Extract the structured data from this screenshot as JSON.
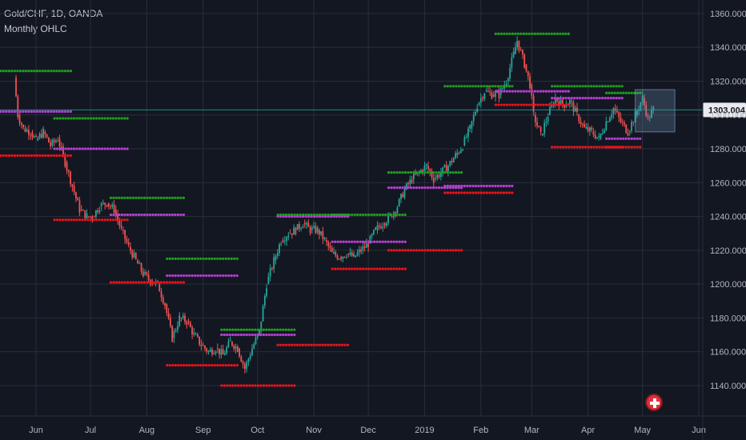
{
  "legend": {
    "title": "Gold/CHF, 1D, OANDA",
    "indicator": "Monthly OHLC"
  },
  "last_price": "1303.004",
  "colors": {
    "background": "#131722",
    "grid": "#2a2e39",
    "up": "#26a69a",
    "down": "#ef5350",
    "monthly_high": "#1e9e1e",
    "monthly_low": "#e8131b",
    "monthly_open": "#b43fd0",
    "price_line": "#26a69a"
  },
  "chart_data": {
    "type": "line",
    "title": "Gold/CHF, 1D, OANDA",
    "x_axis": {
      "tick_labels": [
        "Jun",
        "Jul",
        "Aug",
        "Sep",
        "Oct",
        "Nov",
        "Dec",
        "2019",
        "Feb",
        "Mar",
        "Apr",
        "May",
        "Jun"
      ]
    },
    "y_axis": {
      "range": [
        1122,
        1368
      ],
      "ticks": [
        1140,
        1160,
        1180,
        1200,
        1220,
        1240,
        1260,
        1280,
        1300,
        1320,
        1340,
        1360
      ],
      "decimals": 3
    },
    "grid": true,
    "price_path": [
      [
        "May 20",
        1322
      ],
      [
        "May 22",
        1300
      ],
      [
        "May 25",
        1292
      ],
      [
        "May 29",
        1290
      ],
      [
        "Jun 1",
        1285
      ],
      [
        "Jun 5",
        1290
      ],
      [
        "Jun 9",
        1282
      ],
      [
        "Jun 13",
        1286
      ],
      [
        "Jun 17",
        1272
      ],
      [
        "Jun 21",
        1258
      ],
      [
        "Jun 25",
        1244
      ],
      [
        "Jun 29",
        1240
      ],
      [
        "Jul 2",
        1240
      ],
      [
        "Jul 6",
        1246
      ],
      [
        "Jul 10",
        1248
      ],
      [
        "Jul 14",
        1244
      ],
      [
        "Jul 18",
        1232
      ],
      [
        "Jul 22",
        1222
      ],
      [
        "Jul 26",
        1214
      ],
      [
        "Jul 30",
        1206
      ],
      [
        "Aug 3",
        1202
      ],
      [
        "Aug 7",
        1200
      ],
      [
        "Aug 11",
        1188
      ],
      [
        "Aug 15",
        1168
      ],
      [
        "Aug 19",
        1180
      ],
      [
        "Aug 23",
        1178
      ],
      [
        "Aug 27",
        1170
      ],
      [
        "Aug 31",
        1164
      ],
      [
        "Sep 4",
        1160
      ],
      [
        "Sep 8",
        1162
      ],
      [
        "Sep 12",
        1158
      ],
      [
        "Sep 16",
        1166
      ],
      [
        "Sep 20",
        1162
      ],
      [
        "Sep 24",
        1150
      ],
      [
        "Sep 28",
        1162
      ],
      [
        "Oct 2",
        1172
      ],
      [
        "Oct 6",
        1200
      ],
      [
        "Oct 10",
        1214
      ],
      [
        "Oct 14",
        1226
      ],
      [
        "Oct 18",
        1230
      ],
      [
        "Oct 22",
        1232
      ],
      [
        "Oct 26",
        1236
      ],
      [
        "Oct 30",
        1232
      ],
      [
        "Nov 3",
        1232
      ],
      [
        "Nov 7",
        1226
      ],
      [
        "Nov 11",
        1218
      ],
      [
        "Nov 15",
        1216
      ],
      [
        "Nov 19",
        1218
      ],
      [
        "Nov 23",
        1216
      ],
      [
        "Nov 27",
        1220
      ],
      [
        "Dec 1",
        1224
      ],
      [
        "Dec 5",
        1232
      ],
      [
        "Dec 9",
        1236
      ],
      [
        "Dec 13",
        1240
      ],
      [
        "Dec 17",
        1246
      ],
      [
        "Dec 21",
        1256
      ],
      [
        "Dec 25",
        1262
      ],
      [
        "Dec 29",
        1266
      ],
      [
        "Jan 2",
        1270
      ],
      [
        "Jan 6",
        1262
      ],
      [
        "Jan 10",
        1266
      ],
      [
        "Jan 14",
        1270
      ],
      [
        "Jan 18",
        1276
      ],
      [
        "Jan 22",
        1282
      ],
      [
        "Jan 26",
        1292
      ],
      [
        "Jan 30",
        1306
      ],
      [
        "Feb 3",
        1314
      ],
      [
        "Feb 7",
        1312
      ],
      [
        "Feb 11",
        1312
      ],
      [
        "Feb 15",
        1320
      ],
      [
        "Feb 19",
        1336
      ],
      [
        "Feb 21",
        1344
      ],
      [
        "Feb 25",
        1330
      ],
      [
        "Feb 28",
        1318
      ],
      [
        "Mar 2",
        1300
      ],
      [
        "Mar 6",
        1288
      ],
      [
        "Mar 10",
        1300
      ],
      [
        "Mar 14",
        1310
      ],
      [
        "Mar 18",
        1306
      ],
      [
        "Mar 22",
        1308
      ],
      [
        "Mar 26",
        1300
      ],
      [
        "Mar 30",
        1292
      ],
      [
        "Apr 3",
        1290
      ],
      [
        "Apr 7",
        1286
      ],
      [
        "Apr 11",
        1296
      ],
      [
        "Apr 15",
        1304
      ],
      [
        "Apr 19",
        1296
      ],
      [
        "Apr 23",
        1290
      ],
      [
        "Apr 27",
        1300
      ],
      [
        "May 1",
        1310
      ],
      [
        "May 4",
        1298
      ],
      [
        "May 7",
        1303
      ]
    ],
    "monthly_levels": [
      {
        "month": "Jun",
        "start": "May 20",
        "end": "Jun 30",
        "high": 1326,
        "open": 1302,
        "low": 1276
      },
      {
        "month": "Jul",
        "start": "Jul 1",
        "end": "Jul 31",
        "high": 1298,
        "open": 1280,
        "low": 1238
      },
      {
        "month": "Aug",
        "start": "Aug 1",
        "end": "Aug 31",
        "high": 1251,
        "open": 1241,
        "low": 1201
      },
      {
        "month": "Sep",
        "start": "Sep 1",
        "end": "Sep 30",
        "high": 1215,
        "open": 1205,
        "low": 1152
      },
      {
        "month": "Oct",
        "start": "Oct 1",
        "end": "Oct 31",
        "high": 1173,
        "open": 1170,
        "low": 1140
      },
      {
        "month": "Nov",
        "start": "Nov 1",
        "end": "Nov 30",
        "high": 1241,
        "open": 1240,
        "low": 1164
      },
      {
        "month": "Dec",
        "start": "Dec 1",
        "end": "Dec 31",
        "high": 1241,
        "open": 1225,
        "low": 1209
      },
      {
        "month": "Jan",
        "start": "Jan 1",
        "end": "Jan 31",
        "high": 1266,
        "open": 1257,
        "low": 1220
      },
      {
        "month": "Feb",
        "start": "Feb 1",
        "end": "Feb 28",
        "high": 1317,
        "open": 1258,
        "low": 1254
      },
      {
        "month": "Mar",
        "start": "Mar 1",
        "end": "Mar 31",
        "high": 1348,
        "open": 1314,
        "low": 1306
      },
      {
        "month": "Apr",
        "start": "Apr 1",
        "end": "Apr 30",
        "high": 1317,
        "open": 1310,
        "low": 1281
      },
      {
        "month": "May",
        "start": "May 1",
        "end": "May 10",
        "high": 1313,
        "open": 1286,
        "low": 1281
      }
    ],
    "highlight_box": {
      "start": "Apr 27",
      "end": "May 10",
      "high": 1315,
      "low": 1290
    }
  }
}
